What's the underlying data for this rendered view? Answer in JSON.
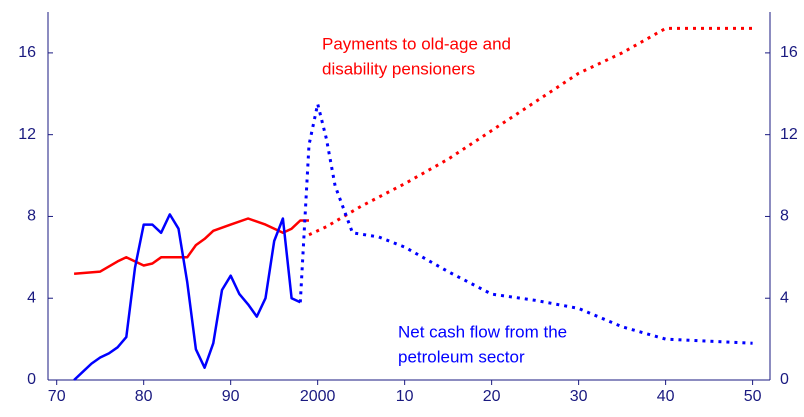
{
  "chart_data": {
    "type": "line",
    "xlim": [
      1969,
      2052
    ],
    "xticks": [
      {
        "value": 1970,
        "label": "70"
      },
      {
        "value": 1980,
        "label": "80"
      },
      {
        "value": 1990,
        "label": "90"
      },
      2000,
      {
        "value": 2010,
        "label": "10"
      },
      {
        "value": 2020,
        "label": "20"
      },
      {
        "value": 2030,
        "label": "30"
      },
      {
        "value": 2040,
        "label": "40"
      },
      {
        "value": 2050,
        "label": "50"
      }
    ],
    "ylim": [
      0,
      18
    ],
    "yticks": [
      0,
      4,
      8,
      12,
      16
    ],
    "y2lim": [
      0,
      18
    ],
    "y2ticks": [
      0,
      4,
      8,
      12,
      16
    ],
    "series": [
      {
        "color": "#ff0000",
        "dashed": false,
        "x": [
          1972,
          1975,
          1977,
          1978,
          1980,
          1981,
          1982,
          1985,
          1986,
          1987,
          1988,
          1990,
          1992,
          1994,
          1996,
          1997,
          1998,
          1999
        ],
        "values": [
          5.2,
          5.3,
          5.8,
          6.0,
          5.6,
          5.7,
          6.0,
          6.0,
          6.6,
          6.9,
          7.3,
          7.6,
          7.9,
          7.6,
          7.2,
          7.4,
          7.8,
          7.8
        ]
      },
      {
        "color": "#ff0000",
        "dashed": true,
        "x": [
          1999,
          2001,
          2005,
          2010,
          2015,
          2020,
          2025,
          2030,
          2035,
          2040,
          2045,
          2050
        ],
        "values": [
          7.1,
          7.5,
          8.5,
          9.6,
          10.8,
          12.2,
          13.6,
          15.0,
          16.0,
          17.2,
          17.2,
          17.2
        ]
      },
      {
        "color": "#0000ff",
        "dashed": false,
        "x": [
          1972,
          1973,
          1974,
          1975,
          1976,
          1977,
          1978,
          1979,
          1980,
          1981,
          1982,
          1983,
          1984,
          1985,
          1986,
          1987,
          1988,
          1989,
          1990,
          1991,
          1992,
          1993,
          1994,
          1995,
          1996,
          1997,
          1998
        ],
        "values": [
          0,
          0.4,
          0.8,
          1.1,
          1.3,
          1.6,
          2.1,
          5.5,
          7.6,
          7.6,
          7.2,
          8.1,
          7.4,
          4.8,
          1.5,
          0.6,
          1.8,
          4.4,
          5.1,
          4.2,
          3.7,
          3.1,
          4.0,
          6.8,
          7.9,
          4.0,
          3.8
        ]
      },
      {
        "color": "#0000ff",
        "dashed": true,
        "x": [
          1998,
          1999,
          2000,
          2001,
          2002,
          2004,
          2007,
          2010,
          2015,
          2020,
          2025,
          2030,
          2035,
          2040,
          2045,
          2050
        ],
        "values": [
          3.8,
          11.5,
          13.5,
          11.8,
          9.5,
          7.2,
          7.0,
          6.5,
          5.3,
          4.2,
          3.9,
          3.5,
          2.6,
          2.0,
          1.9,
          1.8
        ]
      }
    ],
    "annotations": [
      {
        "color": "#ff0000",
        "lines": [
          "Payments to old-age and",
          "disability pensioners"
        ]
      },
      {
        "color": "#0000ff",
        "lines": [
          "Net cash flow from the",
          "petroleum sector"
        ]
      }
    ]
  }
}
